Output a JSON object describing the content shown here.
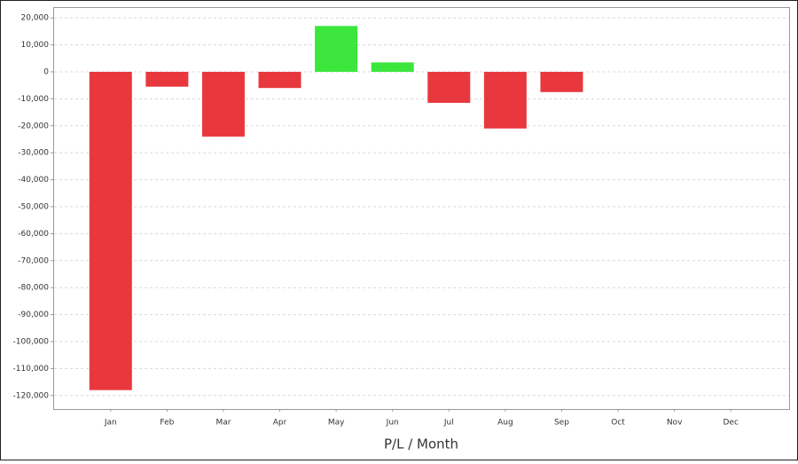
{
  "chart_data": {
    "type": "bar",
    "title": "P/L / Month",
    "categories": [
      "Jan",
      "Feb",
      "Mar",
      "Apr",
      "May",
      "Jun",
      "Jul",
      "Aug",
      "Sep",
      "Oct",
      "Nov",
      "Dec"
    ],
    "values": [
      -118000,
      -5500,
      -24000,
      -6000,
      17000,
      3500,
      -11500,
      -21000,
      -7500,
      null,
      null,
      null
    ],
    "positive_color": "#3ce63c",
    "negative_color": "#e8383d",
    "ylim": [
      -125000,
      24000
    ],
    "yticks": [
      {
        "value": 20000,
        "label": "20,000"
      },
      {
        "value": 10000,
        "label": "10,000"
      },
      0,
      {
        "value": -10000,
        "label": "-10,000"
      },
      {
        "value": -20000,
        "label": "-20,000"
      },
      {
        "value": -30000,
        "label": "-30,000"
      },
      {
        "value": -40000,
        "label": "-40,000"
      },
      {
        "value": -50000,
        "label": "-50,000"
      },
      {
        "value": -60000,
        "label": "-60,000"
      },
      {
        "value": -70000,
        "label": "-70,000"
      },
      {
        "value": -80000,
        "label": "-80,000"
      },
      {
        "value": -90000,
        "label": "-90,000"
      },
      {
        "value": -100000,
        "label": "-100,000"
      },
      {
        "value": -110000,
        "label": "-110,000"
      },
      {
        "value": -120000,
        "label": "-120,000"
      }
    ],
    "grid": true
  }
}
